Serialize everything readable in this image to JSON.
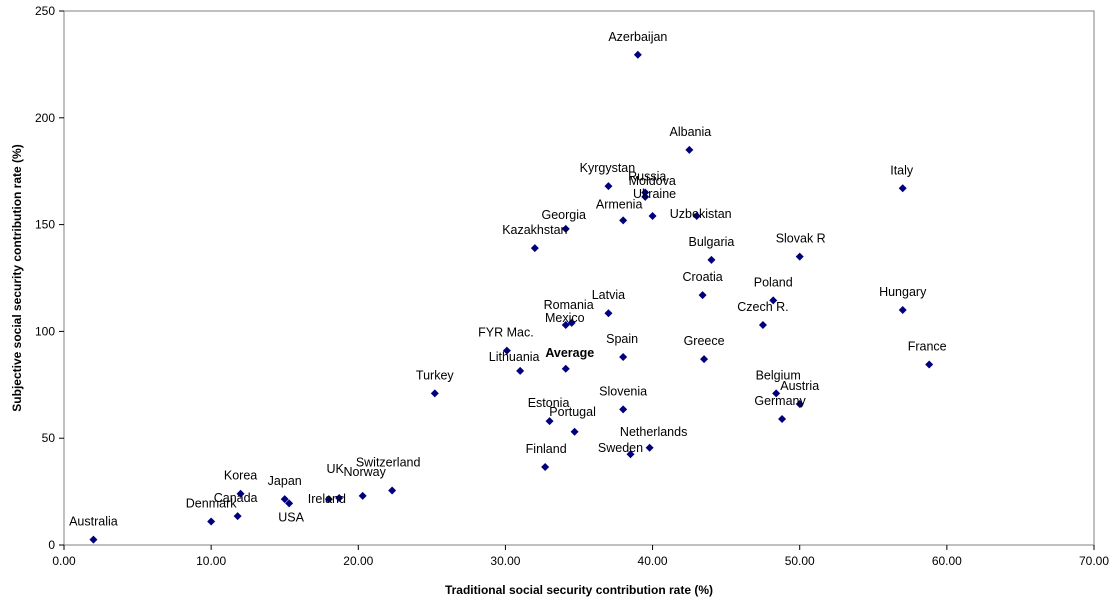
{
  "chart_data": {
    "type": "scatter",
    "xlabel": "Traditional social security contribution rate (%)",
    "ylabel": "Subjective social security contribution rate (%)",
    "xlim": [
      0,
      70
    ],
    "ylim": [
      0,
      250
    ],
    "x_ticks": [
      "0.00",
      "10.00",
      "20.00",
      "30.00",
      "40.00",
      "50.00",
      "60.00",
      "70.00"
    ],
    "x_tick_values": [
      0,
      10,
      20,
      30,
      40,
      50,
      60,
      70
    ],
    "y_ticks": [
      "0",
      "50",
      "100",
      "150",
      "200",
      "250"
    ],
    "y_tick_values": [
      0,
      50,
      100,
      150,
      200,
      250
    ],
    "grid": false,
    "marker": "diamond",
    "marker_color": "#00007f",
    "points": [
      {
        "label": "Australia",
        "x": 2.0,
        "y": 2.5
      },
      {
        "label": "Denmark",
        "x": 10.0,
        "y": 11.0
      },
      {
        "label": "Canada",
        "x": 11.8,
        "y": 13.5
      },
      {
        "label": "Korea",
        "x": 12.0,
        "y": 24.0
      },
      {
        "label": "Japan",
        "x": 15.0,
        "y": 21.5
      },
      {
        "label": "USA",
        "x": 15.3,
        "y": 19.5
      },
      {
        "label": "Ireland",
        "x": 18.0,
        "y": 21.5
      },
      {
        "label": "UK",
        "x": 18.7,
        "y": 22.0
      },
      {
        "label": "Norway",
        "x": 20.3,
        "y": 23.0
      },
      {
        "label": "Switzerland",
        "x": 22.3,
        "y": 25.5
      },
      {
        "label": "Turkey",
        "x": 25.2,
        "y": 71.0
      },
      {
        "label": "FYR Mac.",
        "x": 30.1,
        "y": 91.0
      },
      {
        "label": "Lithuania",
        "x": 31.0,
        "y": 81.5
      },
      {
        "label": "Kazakhstan",
        "x": 32.0,
        "y": 139.0
      },
      {
        "label": "Finland",
        "x": 32.7,
        "y": 36.5
      },
      {
        "label": "Estonia",
        "x": 33.0,
        "y": 58.0
      },
      {
        "label": "Average",
        "x": 34.1,
        "y": 82.5,
        "bold": true
      },
      {
        "label": "Mexico",
        "x": 34.1,
        "y": 103.0
      },
      {
        "label": "Romania",
        "x": 34.5,
        "y": 104.0
      },
      {
        "label": "Portugal",
        "x": 34.7,
        "y": 53.0
      },
      {
        "label": "Georgia",
        "x": 34.1,
        "y": 148.0
      },
      {
        "label": "Kyrgystan",
        "x": 37.0,
        "y": 168.0
      },
      {
        "label": "Latvia",
        "x": 37.0,
        "y": 108.5
      },
      {
        "label": "Armenia",
        "x": 38.0,
        "y": 152.0
      },
      {
        "label": "Spain",
        "x": 38.0,
        "y": 88.0
      },
      {
        "label": "Slovenia",
        "x": 38.0,
        "y": 63.5
      },
      {
        "label": "Sweden",
        "x": 38.5,
        "y": 42.5
      },
      {
        "label": "Azerbaijan",
        "x": 39.0,
        "y": 229.5
      },
      {
        "label": "Russia",
        "x": 39.5,
        "y": 165.0
      },
      {
        "label": "Moldova",
        "x": 39.5,
        "y": 163.0
      },
      {
        "label": "Netherlands",
        "x": 39.8,
        "y": 45.5
      },
      {
        "label": "Ukraine",
        "x": 40.0,
        "y": 154.0
      },
      {
        "label": "Albania",
        "x": 42.5,
        "y": 185.0
      },
      {
        "label": "Uzbekistan",
        "x": 43.0,
        "y": 154.0
      },
      {
        "label": "Croatia",
        "x": 43.4,
        "y": 117.0
      },
      {
        "label": "Greece",
        "x": 43.5,
        "y": 87.0
      },
      {
        "label": "Bulgaria",
        "x": 44.0,
        "y": 133.5
      },
      {
        "label": "Czech R.",
        "x": 47.5,
        "y": 103.0
      },
      {
        "label": "Poland",
        "x": 48.2,
        "y": 114.5
      },
      {
        "label": "Belgium",
        "x": 48.4,
        "y": 71.0
      },
      {
        "label": "Germany",
        "x": 48.8,
        "y": 59.0
      },
      {
        "label": "Austria",
        "x": 50.0,
        "y": 66.0
      },
      {
        "label": "Slovak R",
        "x": 50.0,
        "y": 135.0
      },
      {
        "label": "Hungary",
        "x": 57.0,
        "y": 110.0
      },
      {
        "label": "Italy",
        "x": 57.0,
        "y": 167.0
      },
      {
        "label": "France",
        "x": 58.8,
        "y": 84.5
      }
    ]
  }
}
